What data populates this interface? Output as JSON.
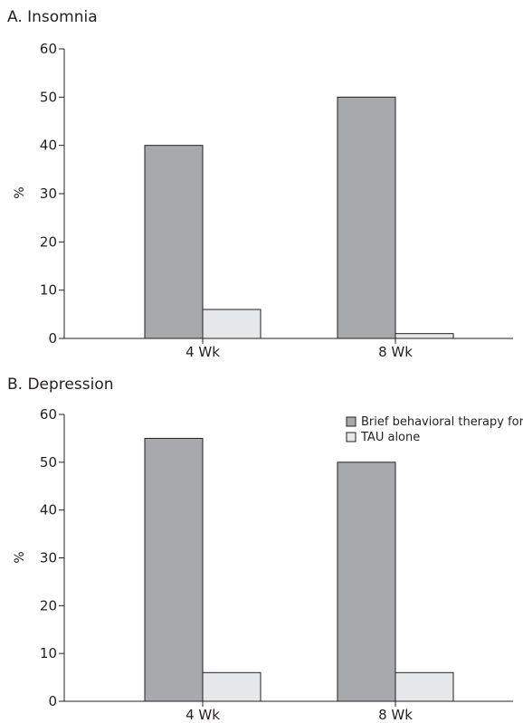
{
  "chart_data": [
    {
      "type": "bar",
      "title": "A. Insomnia",
      "ylabel": "%",
      "xlabel": "",
      "categories": [
        "4 Wk",
        "8 Wk"
      ],
      "ylim": [
        0,
        60
      ],
      "yticks": [
        0,
        10,
        20,
        30,
        40,
        50,
        60
      ],
      "grid": false,
      "legend": false,
      "series": [
        {
          "name": "Brief behavioral therapy for insomnia + TAU",
          "values": [
            40,
            50
          ],
          "color": "#a7a9ac"
        },
        {
          "name": "TAU alone",
          "values": [
            6,
            1
          ],
          "color": "#e6e7e8"
        }
      ]
    },
    {
      "type": "bar",
      "title": "B. Depression",
      "ylabel": "%",
      "xlabel": "",
      "categories": [
        "4 Wk",
        "8 Wk"
      ],
      "ylim": [
        0,
        60
      ],
      "yticks": [
        0,
        10,
        20,
        30,
        40,
        50,
        60
      ],
      "grid": false,
      "legend": "top-right",
      "series": [
        {
          "name": "Brief behavioral therapy for insomnia + TAU",
          "values": [
            55,
            50
          ],
          "color": "#a7a9ac"
        },
        {
          "name": "TAU alone",
          "values": [
            6,
            6
          ],
          "color": "#e6e7e8"
        }
      ]
    }
  ]
}
